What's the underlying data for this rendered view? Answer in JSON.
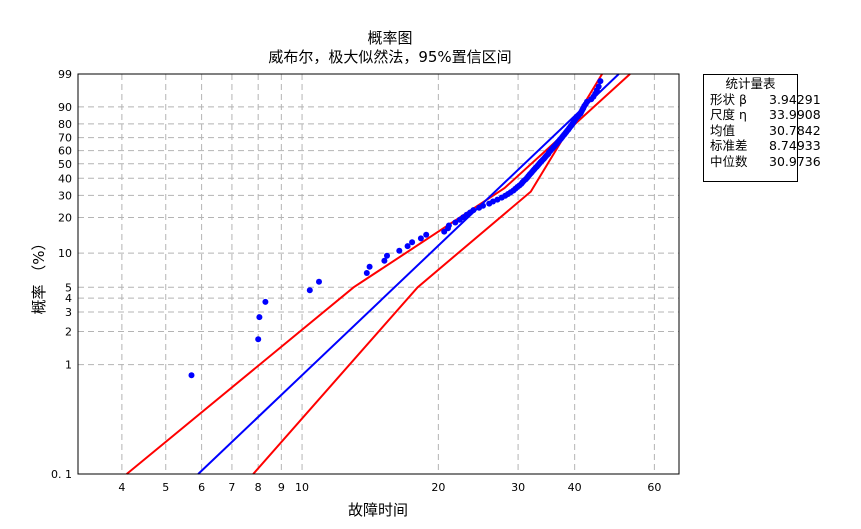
{
  "chart_data": {
    "type": "scatter",
    "title": "概率图",
    "subtitle": "威布尔，极大似然法，95%置信区间",
    "xlabel": "故障时间",
    "ylabel": "概率 （%）",
    "x_scale": "log",
    "y_scale": "weibull",
    "xlim": [
      3.2,
      68
    ],
    "ylim": [
      0.1,
      99
    ],
    "x_ticks": [
      4,
      5,
      6,
      7,
      8,
      9,
      10,
      20,
      30,
      40,
      60
    ],
    "y_ticks": [
      0.1,
      1,
      2,
      3,
      4,
      5,
      10,
      20,
      30,
      40,
      50,
      60,
      70,
      80,
      90,
      99
    ],
    "y_tick_labels": [
      "0. 1",
      "1",
      "2",
      "3",
      "4",
      "5",
      "10",
      "20",
      "30",
      "40",
      "50",
      "60",
      "70",
      "80",
      "90",
      "99"
    ],
    "grid": true,
    "points": [
      [
        5.7,
        0.8
      ],
      [
        8.0,
        1.7
      ],
      [
        8.05,
        2.7
      ],
      [
        8.3,
        3.7
      ],
      [
        10.4,
        4.7
      ],
      [
        10.9,
        5.6
      ],
      [
        13.9,
        6.7
      ],
      [
        14.1,
        7.6
      ],
      [
        15.2,
        8.6
      ],
      [
        15.4,
        9.5
      ],
      [
        16.4,
        10.5
      ],
      [
        17.1,
        11.5
      ],
      [
        17.5,
        12.4
      ],
      [
        18.3,
        13.4
      ],
      [
        18.8,
        14.4
      ],
      [
        20.6,
        15.3
      ],
      [
        21.0,
        16.3
      ],
      [
        21.1,
        17.2
      ],
      [
        21.8,
        18.2
      ],
      [
        22.3,
        19.2
      ],
      [
        22.7,
        20.1
      ],
      [
        23.1,
        21.1
      ],
      [
        23.5,
        22.0
      ],
      [
        23.9,
        23.0
      ],
      [
        24.6,
        24.0
      ],
      [
        25.1,
        24.9
      ],
      [
        25.9,
        25.9
      ],
      [
        26.4,
        26.9
      ],
      [
        27.0,
        27.8
      ],
      [
        27.6,
        28.8
      ],
      [
        28.1,
        29.8
      ],
      [
        28.5,
        30.7
      ],
      [
        28.9,
        31.7
      ],
      [
        29.3,
        32.6
      ],
      [
        29.6,
        33.6
      ],
      [
        29.9,
        34.6
      ],
      [
        30.2,
        35.5
      ],
      [
        30.5,
        36.5
      ],
      [
        30.7,
        37.5
      ],
      [
        30.9,
        38.4
      ],
      [
        31.2,
        39.4
      ],
      [
        31.4,
        40.3
      ],
      [
        31.6,
        41.3
      ],
      [
        31.8,
        42.3
      ],
      [
        32.0,
        43.2
      ],
      [
        32.2,
        44.2
      ],
      [
        32.4,
        45.2
      ],
      [
        32.6,
        46.1
      ],
      [
        32.8,
        47.1
      ],
      [
        33.0,
        48.0
      ],
      [
        33.2,
        49.0
      ],
      [
        33.4,
        50.0
      ],
      [
        33.6,
        51.0
      ],
      [
        33.8,
        51.9
      ],
      [
        34.0,
        52.9
      ],
      [
        34.2,
        53.8
      ],
      [
        34.4,
        54.8
      ],
      [
        34.6,
        55.8
      ],
      [
        34.8,
        56.7
      ],
      [
        35.0,
        57.7
      ],
      [
        35.1,
        58.7
      ],
      [
        35.3,
        59.6
      ],
      [
        35.5,
        60.6
      ],
      [
        35.7,
        61.5
      ],
      [
        35.9,
        62.5
      ],
      [
        36.1,
        63.5
      ],
      [
        36.3,
        64.4
      ],
      [
        36.5,
        65.4
      ],
      [
        36.7,
        66.3
      ],
      [
        36.9,
        67.3
      ],
      [
        37.1,
        68.3
      ],
      [
        37.3,
        69.2
      ],
      [
        37.5,
        70.2
      ],
      [
        37.7,
        71.2
      ],
      [
        37.9,
        72.1
      ],
      [
        38.1,
        73.1
      ],
      [
        38.3,
        74.0
      ],
      [
        38.5,
        75.0
      ],
      [
        38.7,
        76.0
      ],
      [
        38.9,
        76.9
      ],
      [
        39.1,
        77.9
      ],
      [
        39.3,
        78.8
      ],
      [
        39.5,
        79.8
      ],
      [
        39.7,
        80.8
      ],
      [
        39.9,
        81.7
      ],
      [
        40.1,
        82.7
      ],
      [
        40.3,
        83.7
      ],
      [
        40.6,
        84.6
      ],
      [
        40.9,
        85.6
      ],
      [
        41.2,
        86.5
      ],
      [
        41.4,
        87.5
      ],
      [
        41.6,
        88.5
      ],
      [
        41.8,
        89.4
      ],
      [
        42.0,
        90.4
      ],
      [
        42.3,
        91.3
      ],
      [
        42.6,
        92.3
      ],
      [
        43.5,
        93.3
      ],
      [
        44.0,
        94.2
      ],
      [
        44.4,
        95.2
      ],
      [
        44.8,
        96.2
      ],
      [
        45.2,
        97.1
      ],
      [
        45.6,
        98.1
      ]
    ],
    "fit_line": {
      "shape": 3.94291,
      "scale": 33.9908
    },
    "ci_lower": [
      [
        4.1,
        0.1
      ],
      [
        13.0,
        5.0
      ],
      [
        28.0,
        34.0
      ],
      [
        53.0,
        99.0
      ]
    ],
    "ci_upper": [
      [
        7.8,
        0.1
      ],
      [
        18.0,
        5.0
      ],
      [
        32.0,
        32.0
      ],
      [
        46.0,
        99.0
      ]
    ],
    "colors": {
      "points": "#0000ff",
      "fit": "#0000ff",
      "ci": "#ff0000",
      "grid": "#b4b4b4"
    }
  },
  "stats": {
    "title": "统计量表",
    "rows": [
      {
        "label": "形状 β",
        "value": "3.94291"
      },
      {
        "label": "尺度 η",
        "value": "33.9908"
      },
      {
        "label": "均值",
        "value": "30.7842"
      },
      {
        "label": "标准差",
        "value": "8.74933"
      },
      {
        "label": "中位数",
        "value": "30.9736"
      }
    ]
  }
}
